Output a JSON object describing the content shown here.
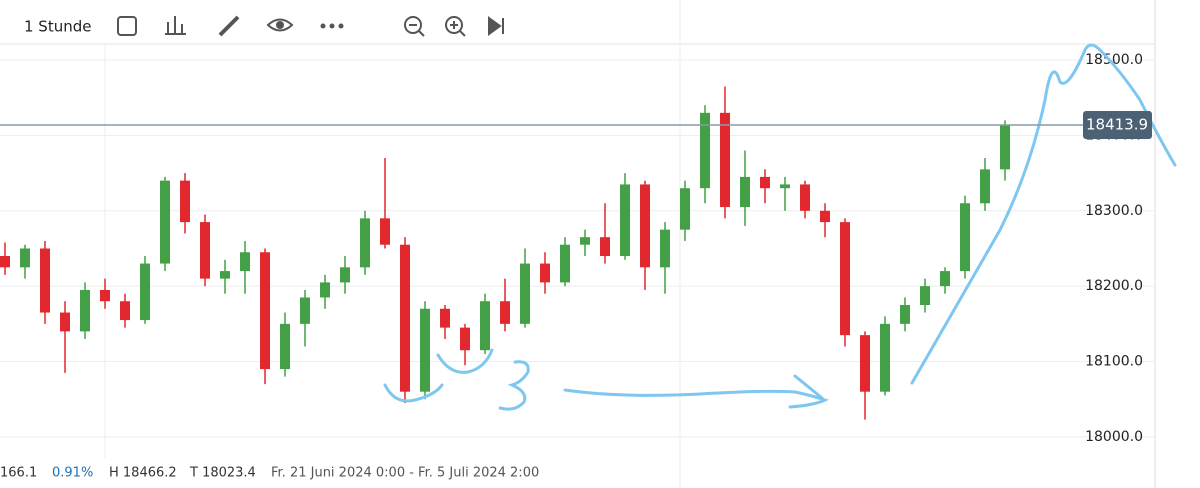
{
  "toolbar": {
    "interval": "1 Stunde"
  },
  "status": {
    "last": "166.1",
    "change": "0.91%",
    "high": "H 18466.2",
    "low": "T 18023.4",
    "range": "Fr. 21 Juni 2024 0:00 - Fr. 5 Juli 2024 2:00"
  },
  "chart_data": {
    "type": "candlestick",
    "open": [
      18240,
      18225,
      18250,
      18165,
      18140,
      18195,
      18180,
      18155,
      18230,
      18340,
      18285,
      18210,
      18220,
      18245,
      18090,
      18150,
      18185,
      18205,
      18225,
      18290,
      18255,
      18060,
      18170,
      18145,
      18115,
      18180,
      18150,
      18230,
      18205,
      18255,
      18265,
      18240,
      18335,
      18225,
      18275,
      18330,
      18430,
      18305,
      18345,
      18330,
      18335,
      18300,
      18285,
      18135,
      18060,
      18150,
      18175,
      18200,
      18220,
      18310,
      18355
    ],
    "high": [
      18258,
      18255,
      18260,
      18180,
      18205,
      18210,
      18190,
      18240,
      18345,
      18350,
      18295,
      18235,
      18260,
      18250,
      18165,
      18195,
      18215,
      18240,
      18300,
      18370,
      18265,
      18180,
      18175,
      18150,
      18190,
      18210,
      18250,
      18245,
      18265,
      18275,
      18310,
      18350,
      18340,
      18285,
      18340,
      18440,
      18465,
      18380,
      18355,
      18345,
      18340,
      18310,
      18290,
      18140,
      18160,
      18185,
      18210,
      18225,
      18320,
      18370,
      18420
    ],
    "low": [
      18215,
      18210,
      18150,
      18085,
      18130,
      18170,
      18145,
      18150,
      18220,
      18270,
      18200,
      18190,
      18190,
      18070,
      18080,
      18120,
      18170,
      18190,
      18215,
      18250,
      18045,
      18050,
      18130,
      18095,
      18110,
      18140,
      18145,
      18190,
      18200,
      18240,
      18230,
      18235,
      18195,
      18190,
      18260,
      18310,
      18290,
      18280,
      18310,
      18300,
      18290,
      18265,
      18120,
      18023,
      18055,
      18140,
      18165,
      18190,
      18210,
      18300,
      18340
    ],
    "close": [
      18225,
      18250,
      18165,
      18140,
      18195,
      18180,
      18155,
      18230,
      18340,
      18285,
      18210,
      18220,
      18245,
      18090,
      18150,
      18185,
      18205,
      18225,
      18290,
      18255,
      18060,
      18170,
      18145,
      18115,
      18180,
      18150,
      18230,
      18205,
      18255,
      18265,
      18240,
      18335,
      18225,
      18275,
      18330,
      18430,
      18305,
      18345,
      18330,
      18335,
      18300,
      18285,
      18135,
      18060,
      18150,
      18175,
      18200,
      18220,
      18310,
      18355,
      18414
    ],
    "up_color": "#43a047",
    "down_color": "#e0282e",
    "ylim": [
      17972,
      18520
    ],
    "yticks": [
      {
        "value": 18000,
        "label": "18000.0"
      },
      {
        "value": 18100,
        "label": "18100.0"
      },
      {
        "value": 18200,
        "label": "18200.0"
      },
      {
        "value": 18300,
        "label": "18300.0"
      },
      {
        "value": 18400,
        "label": "18400.0"
      },
      {
        "value": 18500,
        "label": "18500.0"
      }
    ],
    "last_price": {
      "value": 18413.9,
      "label": "18413.9"
    },
    "grid": true
  }
}
